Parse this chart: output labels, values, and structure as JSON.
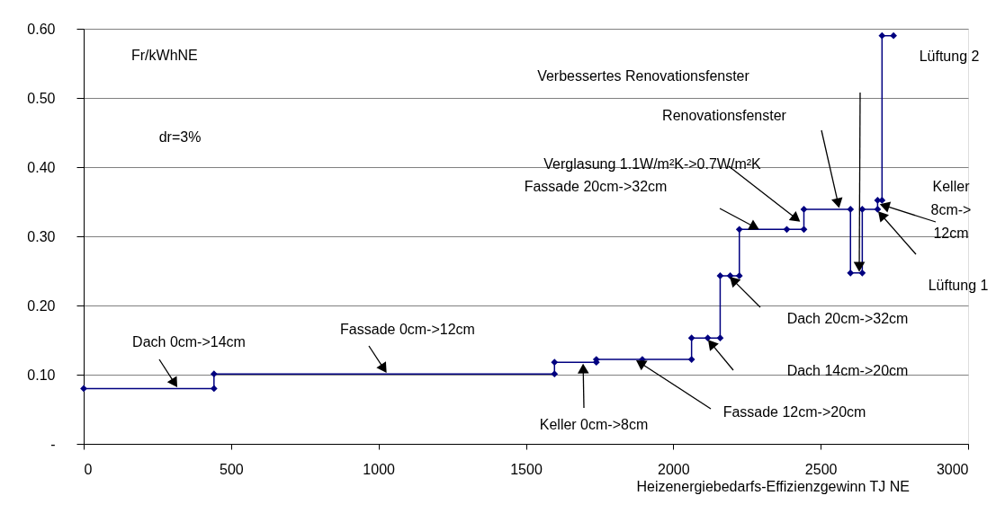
{
  "chart_data": {
    "type": "line",
    "xlabel": "Heizenergiebedarfs-Effizienzgewinn TJ NE",
    "ylabel": "Fr/kWhNE",
    "x": [
      0,
      442,
      442,
      1597,
      1597,
      1739,
      1739,
      1895,
      2062,
      2062,
      2117,
      2159,
      2159,
      2193,
      2224,
      2224,
      2385,
      2443,
      2443,
      2601,
      2601,
      2641,
      2641,
      2693,
      2693,
      2708,
      2708,
      2747
    ],
    "series": [
      {
        "color": "#000080",
        "values": [
          0.08,
          0.08,
          0.101,
          0.101,
          0.118,
          0.118,
          0.122,
          0.122,
          0.122,
          0.153,
          0.153,
          0.153,
          0.243,
          0.243,
          0.243,
          0.31,
          0.31,
          0.31,
          0.339,
          0.339,
          0.247,
          0.247,
          0.339,
          0.339,
          0.352,
          0.352,
          0.59,
          0.59
        ]
      }
    ],
    "xlim": [
      0,
      3000
    ],
    "xticks": [
      0,
      500,
      1000,
      1500,
      2000,
      2500,
      3000
    ],
    "ylim": [
      0,
      0.6
    ],
    "yticks": [
      {
        "value": 0,
        "label": "-"
      },
      {
        "value": 0.1,
        "label": "0.10"
      },
      {
        "value": 0.2,
        "label": "0.20"
      },
      {
        "value": 0.3,
        "label": "0.30"
      },
      {
        "value": 0.4,
        "label": "0.40"
      },
      {
        "value": 0.5,
        "label": "0.50"
      },
      {
        "value": 0.6,
        "label": "0.60"
      }
    ],
    "grid": "y",
    "marker": "diamond",
    "line_style": "solid",
    "legend": false,
    "annotations": [
      {
        "text": "Dach 0cm->14cm",
        "x": 320,
        "y": 0.08
      },
      {
        "text": "Fassade 0cm->12cm",
        "x": 1030,
        "y": 0.101
      },
      {
        "text": "Keller 0cm->8cm",
        "x": 1694,
        "y": 0.118
      },
      {
        "text": "Fassade 12cm->20cm",
        "x": 1870,
        "y": 0.122
      },
      "Dach 14cm->20cm",
      "Dach 20cm->32cm",
      "Fassade 20cm->32cm",
      {
        "text": "Verglasung 1.1W/m²K->0.7W/m²K",
        "x": 2434,
        "y": 0.32
      },
      "Renovationsfenster",
      "Verbessertes Renovationsfenster",
      {
        "text": "Keller 8cm->12cm",
        "x": 2696,
        "y": 0.347
      },
      "Lüftung 1",
      "Lüftung 2",
      "dr=3%"
    ]
  }
}
